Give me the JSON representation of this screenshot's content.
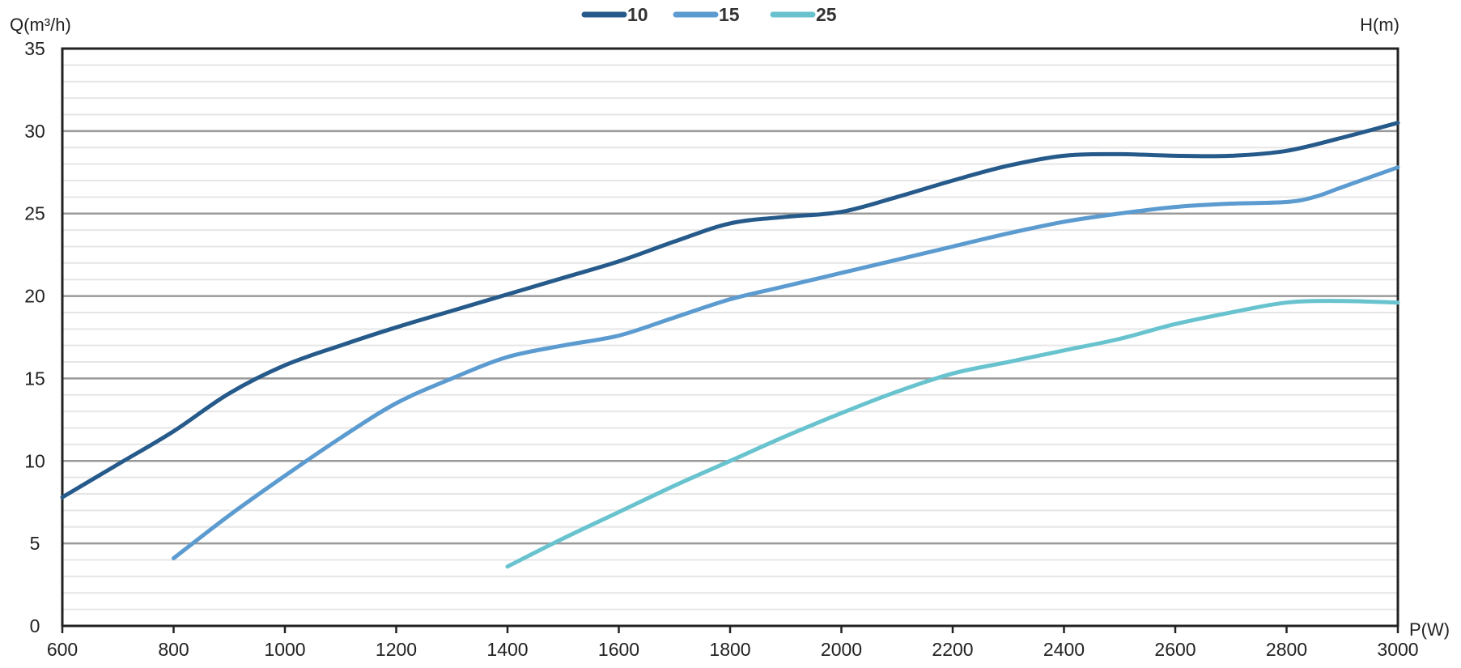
{
  "chart_data": {
    "type": "line",
    "title": "",
    "xlabel": "P(W)",
    "ylabel": "Q(m³/h)",
    "y2label": "H(m)",
    "xlim": [
      600,
      3000
    ],
    "ylim": [
      0,
      35
    ],
    "grid": true,
    "minor_grid": true,
    "legend_position": "top-center",
    "x_ticks": [
      600,
      800,
      1000,
      1200,
      1400,
      1600,
      1800,
      2000,
      2200,
      2400,
      2600,
      2800,
      3000
    ],
    "y_ticks": [
      0,
      5,
      10,
      15,
      20,
      25,
      30,
      35
    ],
    "series": [
      {
        "name": "10",
        "color": "#255a8a",
        "points": [
          [
            600,
            7.8
          ],
          [
            700,
            9.8
          ],
          [
            800,
            11.8
          ],
          [
            900,
            14.1
          ],
          [
            1000,
            15.8
          ],
          [
            1100,
            17.0
          ],
          [
            1200,
            18.1
          ],
          [
            1300,
            19.1
          ],
          [
            1400,
            20.1
          ],
          [
            1500,
            21.1
          ],
          [
            1600,
            22.1
          ],
          [
            1700,
            23.3
          ],
          [
            1800,
            24.4
          ],
          [
            1900,
            24.8
          ],
          [
            2000,
            25.1
          ],
          [
            2100,
            26.0
          ],
          [
            2200,
            27.0
          ],
          [
            2300,
            27.9
          ],
          [
            2400,
            28.5
          ],
          [
            2500,
            28.6
          ],
          [
            2600,
            28.5
          ],
          [
            2700,
            28.5
          ],
          [
            2800,
            28.8
          ],
          [
            2900,
            29.6
          ],
          [
            3000,
            30.5
          ]
        ]
      },
      {
        "name": "15",
        "color": "#5b9bd0",
        "points": [
          [
            800,
            4.1
          ],
          [
            900,
            6.7
          ],
          [
            1000,
            9.1
          ],
          [
            1100,
            11.4
          ],
          [
            1200,
            13.5
          ],
          [
            1300,
            15.0
          ],
          [
            1400,
            16.3
          ],
          [
            1500,
            17.0
          ],
          [
            1600,
            17.6
          ],
          [
            1700,
            18.7
          ],
          [
            1800,
            19.8
          ],
          [
            1900,
            20.6
          ],
          [
            2000,
            21.4
          ],
          [
            2100,
            22.2
          ],
          [
            2200,
            23.0
          ],
          [
            2300,
            23.8
          ],
          [
            2400,
            24.5
          ],
          [
            2500,
            25.0
          ],
          [
            2600,
            25.4
          ],
          [
            2700,
            25.6
          ],
          [
            2800,
            25.7
          ],
          [
            2850,
            26.0
          ],
          [
            2900,
            26.6
          ],
          [
            3000,
            27.8
          ]
        ]
      },
      {
        "name": "25",
        "color": "#68c3cf",
        "points": [
          [
            1400,
            3.6
          ],
          [
            1500,
            5.3
          ],
          [
            1600,
            6.9
          ],
          [
            1700,
            8.5
          ],
          [
            1800,
            10.0
          ],
          [
            1900,
            11.5
          ],
          [
            2000,
            12.9
          ],
          [
            2100,
            14.2
          ],
          [
            2200,
            15.3
          ],
          [
            2300,
            16.0
          ],
          [
            2400,
            16.7
          ],
          [
            2500,
            17.4
          ],
          [
            2600,
            18.3
          ],
          [
            2700,
            19.0
          ],
          [
            2800,
            19.6
          ],
          [
            2900,
            19.7
          ],
          [
            3000,
            19.6
          ]
        ]
      }
    ]
  }
}
